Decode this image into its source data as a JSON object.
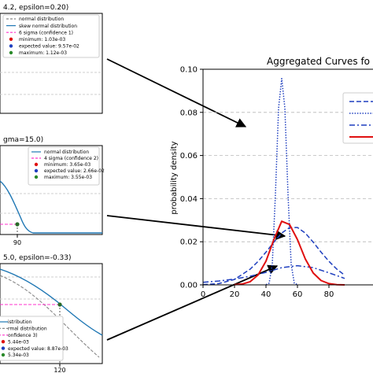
{
  "chart_data": [
    {
      "id": "panel-1",
      "type": "line",
      "title": "4.2, epsilon=0.20)",
      "legend": {
        "placement": "top-right",
        "entries": [
          {
            "label": "normal distribution",
            "style": "grey-dashed"
          },
          {
            "label": "skew normal distribution",
            "style": "blue-line"
          },
          {
            "label": "6 sigma (confidence 1)",
            "style": "magenta-dashed"
          },
          {
            "label": "minimum: 1.03e-03",
            "style": "red-dot"
          },
          {
            "label": "expected value: 9.57e-02",
            "style": "blue-dot"
          },
          {
            "label": "maximum: 1.12e-03",
            "style": "green-dot"
          }
        ]
      },
      "grid": true
    },
    {
      "id": "panel-2",
      "type": "line",
      "title": "gma=15.0)",
      "legend": {
        "placement": "top-right",
        "entries": [
          {
            "label": "normal distribution",
            "style": "blue-line"
          },
          {
            "label": "4 sigma (confidence 2)",
            "style": "magenta-dashed"
          },
          {
            "label": "minimum: 3.65e-03",
            "style": "red-dot"
          },
          {
            "label": "expected value: 2.66e-02",
            "style": "blue-dot"
          },
          {
            "label": "maximum: 3.55e-03",
            "style": "green-dot"
          }
        ]
      },
      "x_tick_labels": [
        "90"
      ],
      "grid": true
    },
    {
      "id": "panel-3",
      "type": "line",
      "title": "5.0, epsilon=-0.33)",
      "legend": {
        "placement": "bottom-left",
        "entries": [
          {
            "label": "istribution",
            "style": "blue-line"
          },
          {
            "label": "rmal distribution",
            "style": "grey-dashed"
          },
          {
            "label": "onfidence 3)",
            "style": "magenta-dashed"
          },
          {
            "label": "5.44e-03",
            "style": "red-dot"
          },
          {
            "label": "expected value: 8.87e-03",
            "style": "blue-dot"
          },
          {
            "label": "5.34e-03",
            "style": "green-dot"
          }
        ]
      },
      "x_tick_labels": [
        "120"
      ],
      "grid": true
    },
    {
      "id": "aggregated",
      "type": "line",
      "title": "Aggregated Curves fo",
      "xlabel": "",
      "ylabel": "probability density",
      "xlim": [
        0,
        90
      ],
      "ylim": [
        0,
        0.1
      ],
      "x_ticks": [
        0,
        20,
        40,
        60,
        80
      ],
      "y_ticks": [
        "0.00",
        "0.02",
        "0.04",
        "0.06",
        "0.08",
        "0.10"
      ],
      "grid": "horizontal dashed",
      "legend_placement": "top-right",
      "series": [
        {
          "style": "dashed",
          "color": "#1f3fbf",
          "x": [
            0,
            10,
            20,
            30,
            35,
            40,
            45,
            50,
            55,
            60,
            65,
            70,
            75,
            80,
            85,
            90
          ],
          "y": [
            0.0001,
            0.0006,
            0.0025,
            0.0073,
            0.0109,
            0.0152,
            0.0198,
            0.024,
            0.0266,
            0.0266,
            0.024,
            0.0198,
            0.0152,
            0.0109,
            0.0073,
            0.0045
          ]
        },
        {
          "style": "dotted",
          "color": "#1f3fbf",
          "x": [
            40,
            42,
            44,
            46,
            48,
            50,
            52,
            54,
            56,
            58,
            60
          ],
          "y": [
            0.0001,
            0.0008,
            0.0095,
            0.042,
            0.082,
            0.0957,
            0.082,
            0.042,
            0.0095,
            0.0008,
            0.0001
          ]
        },
        {
          "style": "dashdot",
          "color": "#1f3fbf",
          "x": [
            0,
            10,
            20,
            30,
            40,
            50,
            60,
            70,
            80,
            90
          ],
          "y": [
            0.0012,
            0.0018,
            0.0027,
            0.004,
            0.0058,
            0.008,
            0.0089,
            0.008,
            0.0056,
            0.003
          ]
        },
        {
          "style": "solid",
          "color": "#e01010",
          "x": [
            20,
            25,
            30,
            35,
            40,
            45,
            50,
            55,
            60,
            65,
            70,
            75,
            80,
            85,
            90
          ],
          "y": [
            0.0001,
            0.0004,
            0.0015,
            0.0046,
            0.011,
            0.021,
            0.0295,
            0.028,
            0.021,
            0.012,
            0.0055,
            0.002,
            0.0006,
            0.0001,
            0.0
          ]
        }
      ]
    }
  ]
}
